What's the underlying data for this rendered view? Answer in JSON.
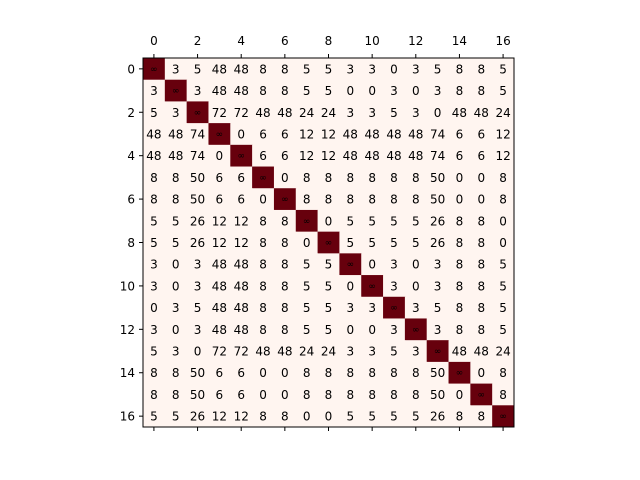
{
  "chart_data": {
    "type": "heatmap",
    "title": "",
    "xlabel": "",
    "ylabel": "",
    "x_axis_position": "top",
    "x_ticks": [
      0,
      2,
      4,
      6,
      8,
      10,
      12,
      14,
      16
    ],
    "y_ticks": [
      0,
      2,
      4,
      6,
      8,
      10,
      12,
      14,
      16
    ],
    "grid": false,
    "colormap": "Reds",
    "colors": {
      "low": "#fff5f0",
      "high": "#67000d",
      "text": "#000000"
    },
    "infinity_label": "∞",
    "matrix": [
      [
        "∞",
        "3",
        "5",
        "48",
        "48",
        "8",
        "8",
        "5",
        "5",
        "3",
        "3",
        "0",
        "3",
        "5",
        "8",
        "8",
        "5"
      ],
      [
        "3",
        "∞",
        "3",
        "48",
        "48",
        "8",
        "8",
        "5",
        "5",
        "0",
        "0",
        "3",
        "0",
        "3",
        "8",
        "8",
        "5"
      ],
      [
        "5",
        "3",
        "∞",
        "72",
        "72",
        "48",
        "48",
        "24",
        "24",
        "3",
        "3",
        "5",
        "3",
        "0",
        "48",
        "48",
        "24"
      ],
      [
        "48",
        "48",
        "74",
        "∞",
        "0",
        "6",
        "6",
        "12",
        "12",
        "48",
        "48",
        "48",
        "48",
        "74",
        "6",
        "6",
        "12"
      ],
      [
        "48",
        "48",
        "74",
        "0",
        "∞",
        "6",
        "6",
        "12",
        "12",
        "48",
        "48",
        "48",
        "48",
        "74",
        "6",
        "6",
        "12"
      ],
      [
        "8",
        "8",
        "50",
        "6",
        "6",
        "∞",
        "0",
        "8",
        "8",
        "8",
        "8",
        "8",
        "8",
        "50",
        "0",
        "0",
        "8"
      ],
      [
        "8",
        "8",
        "50",
        "6",
        "6",
        "0",
        "∞",
        "8",
        "8",
        "8",
        "8",
        "8",
        "8",
        "50",
        "0",
        "0",
        "8"
      ],
      [
        "5",
        "5",
        "26",
        "12",
        "12",
        "8",
        "8",
        "∞",
        "0",
        "5",
        "5",
        "5",
        "5",
        "26",
        "8",
        "8",
        "0"
      ],
      [
        "5",
        "5",
        "26",
        "12",
        "12",
        "8",
        "8",
        "0",
        "∞",
        "5",
        "5",
        "5",
        "5",
        "26",
        "8",
        "8",
        "0"
      ],
      [
        "3",
        "0",
        "3",
        "48",
        "48",
        "8",
        "8",
        "5",
        "5",
        "∞",
        "0",
        "3",
        "0",
        "3",
        "8",
        "8",
        "5"
      ],
      [
        "3",
        "0",
        "3",
        "48",
        "48",
        "8",
        "8",
        "5",
        "5",
        "0",
        "∞",
        "3",
        "0",
        "3",
        "8",
        "8",
        "5"
      ],
      [
        "0",
        "3",
        "5",
        "48",
        "48",
        "8",
        "8",
        "5",
        "5",
        "3",
        "3",
        "∞",
        "3",
        "5",
        "8",
        "8",
        "5"
      ],
      [
        "3",
        "0",
        "3",
        "48",
        "48",
        "8",
        "8",
        "5",
        "5",
        "0",
        "0",
        "3",
        "∞",
        "3",
        "8",
        "8",
        "5"
      ],
      [
        "5",
        "3",
        "0",
        "72",
        "72",
        "48",
        "48",
        "24",
        "24",
        "3",
        "3",
        "5",
        "3",
        "∞",
        "48",
        "48",
        "24"
      ],
      [
        "8",
        "8",
        "50",
        "6",
        "6",
        "0",
        "0",
        "8",
        "8",
        "8",
        "8",
        "8",
        "8",
        "50",
        "∞",
        "0",
        "8"
      ],
      [
        "8",
        "8",
        "50",
        "6",
        "6",
        "0",
        "0",
        "8",
        "8",
        "8",
        "8",
        "8",
        "8",
        "50",
        "0",
        "∞",
        "8"
      ],
      [
        "5",
        "5",
        "26",
        "12",
        "12",
        "8",
        "8",
        "0",
        "0",
        "5",
        "5",
        "5",
        "5",
        "26",
        "8",
        "8",
        "∞"
      ]
    ]
  }
}
